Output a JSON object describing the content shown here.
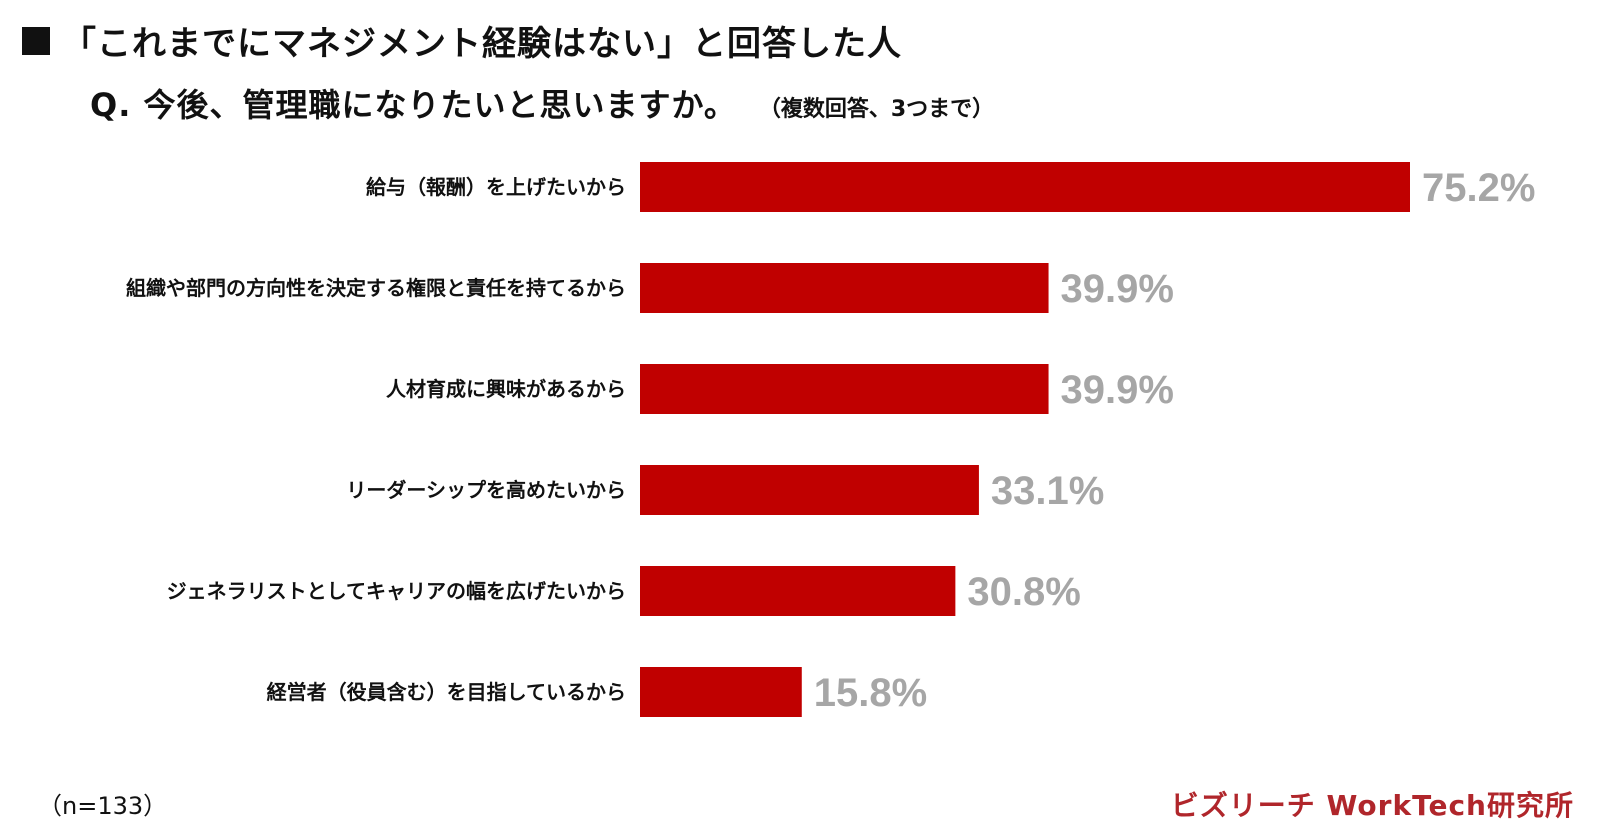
{
  "header": {
    "title": "「これまでにマネジメント経験はない」と回答した人",
    "question": "Q. 今後、管理職になりたいと思いますか。",
    "question_note": "（複数回答、3つまで）"
  },
  "footer": {
    "sample_size": "（n=133）",
    "brand": "ビズリーチ WorkTech研究所"
  },
  "colors": {
    "bar": "#c00000",
    "value_label": "#a6a6a6",
    "brand": "#b0262b"
  },
  "chart_data": {
    "type": "bar",
    "orientation": "horizontal",
    "categories": [
      "給与（報酬）を上げたいから",
      "組織や部門の方向性を決定する権限と責任を持てるから",
      "人材育成に興味があるから",
      "リーダーシップを高めたいから",
      "ジェネラリストとしてキャリアの幅を広げたいから",
      "経営者（役員含む）を目指しているから"
    ],
    "values": [
      75.2,
      39.9,
      39.9,
      33.1,
      30.8,
      15.8
    ],
    "value_labels": [
      "75.2%",
      "39.9%",
      "39.9%",
      "33.1%",
      "30.8%",
      "15.8%"
    ],
    "unit": "%",
    "xlim": [
      0,
      75.2
    ],
    "grid": false,
    "legend": "none"
  }
}
